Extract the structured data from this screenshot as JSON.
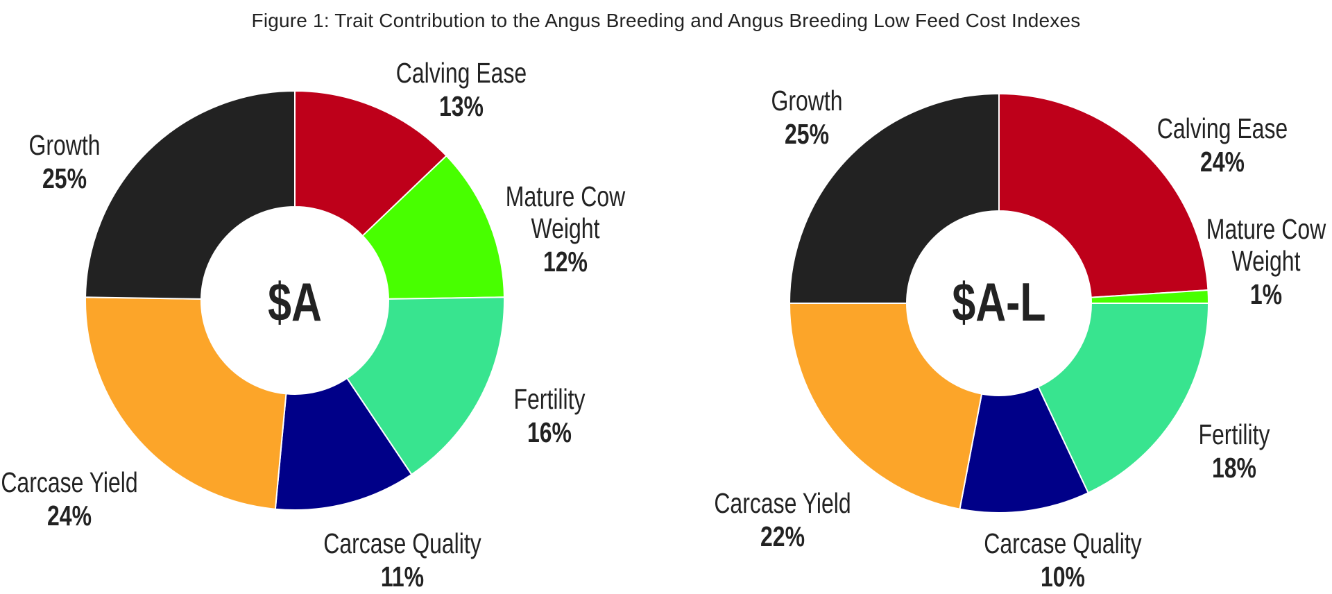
{
  "title": "Figure 1: Trait Contribution to the Angus Breeding and Angus Breeding Low Feed Cost Indexes",
  "colors": {
    "Growth": "#222222",
    "Calving Ease": "#BE001A",
    "Mature Cow Weight": "#48FF00",
    "Fertility": "#38E48F",
    "Carcase Quality": "#000088",
    "Carcase Yield": "#FCA529"
  },
  "charts": [
    {
      "center_label": "$A",
      "labels": [
        {
          "name": "Growth",
          "pct": "25%"
        },
        {
          "name": "Calving Ease",
          "pct": "13%"
        },
        {
          "name_line1": "Mature Cow",
          "name_line2": "Weight",
          "pct": "12%"
        },
        {
          "name": "Fertility",
          "pct": "16%"
        },
        {
          "name": "Carcase Quality",
          "pct": "11%"
        },
        {
          "name": "Carcase Yield",
          "pct": "24%"
        }
      ]
    },
    {
      "center_label": "$A-L",
      "labels": [
        {
          "name": "Growth",
          "pct": "25%"
        },
        {
          "name": "Calving Ease",
          "pct": "24%"
        },
        {
          "name_line1": "Mature Cow",
          "name_line2": "Weight",
          "pct": "1%"
        },
        {
          "name": "Fertility",
          "pct": "18%"
        },
        {
          "name": "Carcase Quality",
          "pct": "10%"
        },
        {
          "name": "Carcase Yield",
          "pct": "22%"
        }
      ]
    }
  ],
  "chart_data": [
    {
      "type": "pie",
      "subtype": "donut",
      "title": "$A",
      "categories": [
        "Calving Ease",
        "Mature Cow Weight",
        "Fertility",
        "Carcase Quality",
        "Carcase Yield",
        "Growth"
      ],
      "values": [
        13,
        12,
        16,
        11,
        24,
        25
      ],
      "units": "%",
      "colors": [
        "#BE001A",
        "#48FF00",
        "#38E48F",
        "#000088",
        "#FCA529",
        "#222222"
      ],
      "start_angle": "12 o'clock, clockwise",
      "legend": "none (direct labels)"
    },
    {
      "type": "pie",
      "subtype": "donut",
      "title": "$A-L",
      "categories": [
        "Calving Ease",
        "Mature Cow Weight",
        "Fertility",
        "Carcase Quality",
        "Carcase Yield",
        "Growth"
      ],
      "values": [
        24,
        1,
        18,
        10,
        22,
        25
      ],
      "units": "%",
      "colors": [
        "#BE001A",
        "#48FF00",
        "#38E48F",
        "#000088",
        "#FCA529",
        "#222222"
      ],
      "start_angle": "12 o'clock, clockwise",
      "legend": "none (direct labels)"
    }
  ]
}
